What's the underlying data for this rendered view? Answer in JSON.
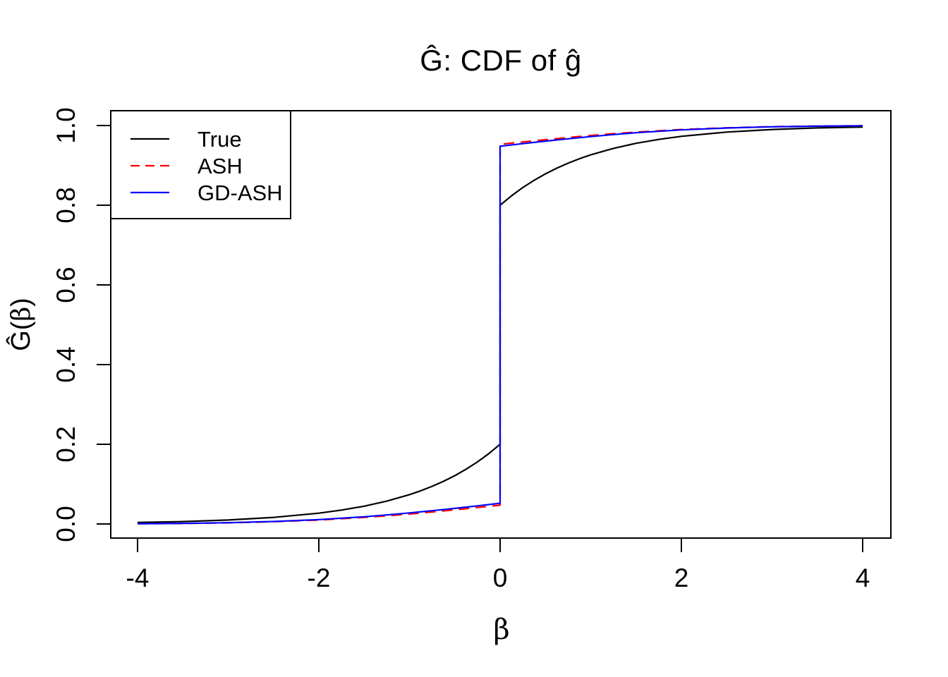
{
  "title": "Ĝ: CDF of ĝ",
  "x_axis": {
    "label": "β",
    "tick_labels": [
      "-4",
      "-2",
      "0",
      "2",
      "4"
    ],
    "tick_values": [
      -4,
      -2,
      0,
      2,
      4
    ],
    "range": [
      -4,
      4
    ]
  },
  "y_axis": {
    "label": "Ĝ(β)",
    "tick_labels": [
      "0.0",
      "0.2",
      "0.4",
      "0.6",
      "0.8",
      "1.0"
    ],
    "tick_values": [
      0,
      0.2,
      0.4,
      0.6,
      0.8,
      1.0
    ],
    "range": [
      0,
      1
    ]
  },
  "legend": {
    "position": "top-left",
    "items": [
      {
        "label": "True",
        "color": "#000000",
        "style": "solid"
      },
      {
        "label": "ASH",
        "color": "#ff0000",
        "style": "dashed"
      },
      {
        "label": "GD-ASH",
        "color": "#0000ff",
        "style": "solid"
      }
    ]
  },
  "chart_data": {
    "type": "line",
    "title": "Ĝ: CDF of ĝ",
    "xlabel": "β",
    "ylabel": "Ĝ(β)",
    "xlim": [
      -4,
      4
    ],
    "ylim": [
      0,
      1
    ],
    "grid": false,
    "legend_position": "top-left",
    "note": "CDF curves with point mass at 0: True jumps 0.2 to 0.8; ASH/GD-ASH jump ~0.05 to ~0.95",
    "series": [
      {
        "name": "True",
        "color": "#000000",
        "style": "solid",
        "points": [
          [
            -4,
            0.0037
          ],
          [
            -3.5,
            0.006
          ],
          [
            -3,
            0.01
          ],
          [
            -2.5,
            0.0164
          ],
          [
            -2,
            0.0271
          ],
          [
            -1.75,
            0.0348
          ],
          [
            -1.5,
            0.0446
          ],
          [
            -1.25,
            0.0573
          ],
          [
            -1,
            0.0736
          ],
          [
            -0.875,
            0.0834
          ],
          [
            -0.75,
            0.0945
          ],
          [
            -0.625,
            0.1071
          ],
          [
            -0.5,
            0.1213
          ],
          [
            -0.375,
            0.1375
          ],
          [
            -0.25,
            0.1558
          ],
          [
            -0.125,
            0.1765
          ],
          [
            0,
            0.2
          ],
          [
            0,
            0.8
          ],
          [
            0.125,
            0.8235
          ],
          [
            0.25,
            0.8442
          ],
          [
            0.375,
            0.8625
          ],
          [
            0.5,
            0.8787
          ],
          [
            0.625,
            0.8929
          ],
          [
            0.75,
            0.9055
          ],
          [
            0.875,
            0.9166
          ],
          [
            1,
            0.9264
          ],
          [
            1.25,
            0.9427
          ],
          [
            1.5,
            0.9554
          ],
          [
            1.75,
            0.9652
          ],
          [
            2,
            0.9729
          ],
          [
            2.5,
            0.9836
          ],
          [
            3,
            0.99
          ],
          [
            3.5,
            0.994
          ],
          [
            4,
            0.9963
          ]
        ]
      },
      {
        "name": "ASH",
        "color": "#ff0000",
        "style": "dashed",
        "points": [
          [
            -4,
            0.0006
          ],
          [
            -3.5,
            0.0013
          ],
          [
            -3,
            0.0029
          ],
          [
            -2.5,
            0.0056
          ],
          [
            -2,
            0.0099
          ],
          [
            -1.5,
            0.0164
          ],
          [
            -1.25,
            0.0204
          ],
          [
            -1,
            0.025
          ],
          [
            -0.75,
            0.03
          ],
          [
            -0.5,
            0.0355
          ],
          [
            -0.25,
            0.0412
          ],
          [
            0,
            0.047
          ],
          [
            0,
            0.953
          ],
          [
            0.25,
            0.9588
          ],
          [
            0.5,
            0.9645
          ],
          [
            0.75,
            0.97
          ],
          [
            1,
            0.975
          ],
          [
            1.25,
            0.9796
          ],
          [
            1.5,
            0.9836
          ],
          [
            2,
            0.9901
          ],
          [
            2.5,
            0.9944
          ],
          [
            3,
            0.9971
          ],
          [
            3.5,
            0.9986
          ],
          [
            4,
            0.9994
          ]
        ]
      },
      {
        "name": "GD-ASH",
        "color": "#0000ff",
        "style": "solid",
        "points": [
          [
            -4,
            0.0007
          ],
          [
            -3.5,
            0.0015
          ],
          [
            -3,
            0.0032
          ],
          [
            -2.5,
            0.0062
          ],
          [
            -2,
            0.011
          ],
          [
            -1.5,
            0.0181
          ],
          [
            -1.25,
            0.0226
          ],
          [
            -1,
            0.0277
          ],
          [
            -0.75,
            0.0332
          ],
          [
            -0.5,
            0.0392
          ],
          [
            -0.25,
            0.0455
          ],
          [
            0,
            0.052
          ],
          [
            0,
            0.948
          ],
          [
            0.25,
            0.9545
          ],
          [
            0.5,
            0.9608
          ],
          [
            0.75,
            0.9668
          ],
          [
            1,
            0.9723
          ],
          [
            1.25,
            0.9774
          ],
          [
            1.5,
            0.9819
          ],
          [
            2,
            0.989
          ],
          [
            2.5,
            0.9938
          ],
          [
            3,
            0.9968
          ],
          [
            3.5,
            0.9984
          ],
          [
            4,
            0.9994
          ]
        ]
      }
    ]
  }
}
